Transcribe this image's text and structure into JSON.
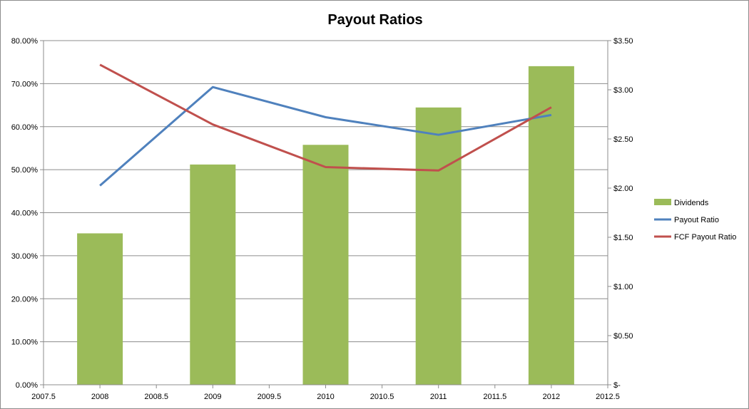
{
  "chart_data": {
    "type": "bar",
    "title": "Payout Ratios",
    "x": [
      2008,
      2009,
      2010,
      2011,
      2012
    ],
    "xlim": [
      2007.5,
      2012.5
    ],
    "x_ticks": [
      "2007.5",
      "2008",
      "2008.5",
      "2009",
      "2009.5",
      "2010",
      "2010.5",
      "2011",
      "2011.5",
      "2012",
      "2012.5"
    ],
    "y_left": {
      "ylim": [
        0,
        0.8
      ],
      "ticks": [
        "0.00%",
        "10.00%",
        "20.00%",
        "30.00%",
        "40.00%",
        "50.00%",
        "60.00%",
        "70.00%",
        "80.00%"
      ]
    },
    "y_right": {
      "ylim": [
        0,
        3.5
      ],
      "ticks": [
        "$-",
        "$0.50",
        "$1.00",
        "$1.50",
        "$2.00",
        "$2.50",
        "$3.00",
        "$3.50"
      ]
    },
    "series": [
      {
        "name": "Dividends",
        "kind": "bar",
        "axis": "right",
        "color": "#9bbb59",
        "values": [
          1.54,
          2.24,
          2.44,
          2.82,
          3.24
        ]
      },
      {
        "name": "Payout Ratio",
        "kind": "line",
        "axis": "left",
        "color": "#4f81bd",
        "values": [
          0.463,
          0.692,
          0.622,
          0.581,
          0.627
        ]
      },
      {
        "name": "FCF Payout Ratio",
        "kind": "line",
        "axis": "left",
        "color": "#c0504d",
        "values": [
          0.744,
          0.605,
          0.506,
          0.498,
          0.645
        ]
      }
    ],
    "grid": "horizontal",
    "legend_position": "right"
  }
}
